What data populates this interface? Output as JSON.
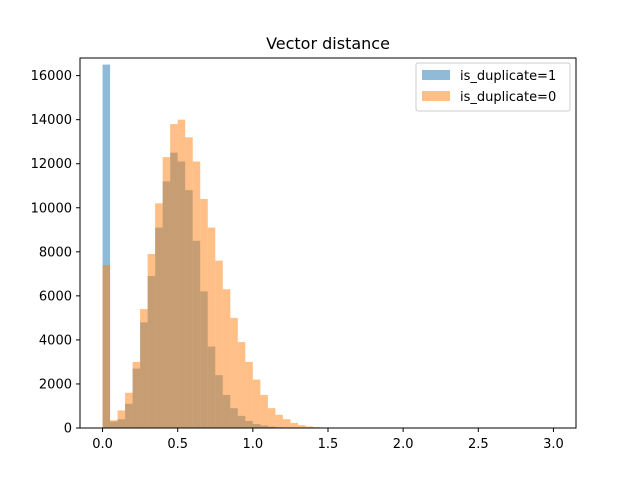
{
  "chart_data": {
    "type": "bar",
    "title": "Vector distance",
    "xlabel": "",
    "ylabel": "",
    "xlim": [
      -0.15,
      3.15
    ],
    "ylim": [
      0,
      16800
    ],
    "bin_width": 0.05,
    "bin_start": 0.0,
    "xticks": [
      0.0,
      0.5,
      1.0,
      1.5,
      2.0,
      2.5,
      3.0
    ],
    "xtick_labels": [
      "0.0",
      "0.5",
      "1.0",
      "1.5",
      "2.0",
      "2.5",
      "3.0"
    ],
    "yticks": [
      0,
      2000,
      4000,
      6000,
      8000,
      10000,
      12000,
      14000,
      16000
    ],
    "ytick_labels": [
      "0",
      "2000",
      "4000",
      "6000",
      "8000",
      "10000",
      "12000",
      "14000",
      "16000"
    ],
    "grid": false,
    "legend_position": "top-right",
    "series": [
      {
        "name": "is_duplicate=1",
        "color": "#1f77b4",
        "opacity": 0.5,
        "values": [
          16500,
          300,
          400,
          1100,
          2700,
          4800,
          6900,
          9100,
          11200,
          12500,
          12100,
          10800,
          8500,
          6200,
          3700,
          2400,
          1500,
          900,
          550,
          320,
          180,
          110,
          60,
          35,
          20,
          10,
          5,
          2,
          1,
          0
        ]
      },
      {
        "name": "is_duplicate=0",
        "color": "#ff7f0e",
        "opacity": 0.5,
        "values": [
          7400,
          350,
          800,
          1600,
          3000,
          5400,
          7900,
          10200,
          12300,
          13800,
          14000,
          13200,
          12100,
          10400,
          9100,
          7600,
          6300,
          5000,
          3900,
          3000,
          2200,
          1500,
          900,
          600,
          400,
          230,
          130,
          70,
          40,
          20,
          10
        ]
      }
    ]
  }
}
